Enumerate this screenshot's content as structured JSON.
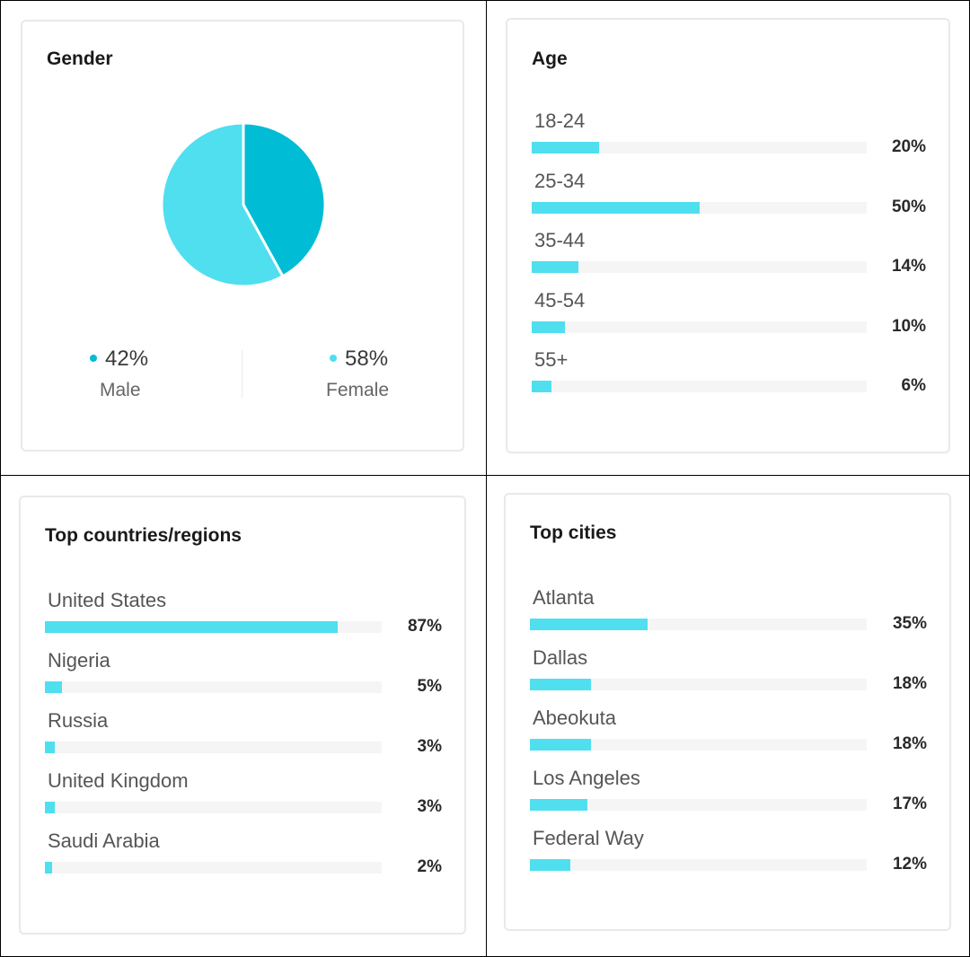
{
  "colors": {
    "male": "#00bcd4",
    "female": "#4fdfef",
    "bar": "#4fdfef",
    "track": "#f5f5f5"
  },
  "gender": {
    "title": "Gender",
    "male_pct": "42%",
    "male_label": "Male",
    "female_pct": "58%",
    "female_label": "Female"
  },
  "age": {
    "title": "Age",
    "items": [
      {
        "label": "18-24",
        "pct": "20%"
      },
      {
        "label": "25-34",
        "pct": "50%"
      },
      {
        "label": "35-44",
        "pct": "14%"
      },
      {
        "label": "45-54",
        "pct": "10%"
      },
      {
        "label": "55+",
        "pct": "6%"
      }
    ]
  },
  "countries": {
    "title": "Top countries/regions",
    "items": [
      {
        "label": "United States",
        "pct": "87%"
      },
      {
        "label": "Nigeria",
        "pct": "5%"
      },
      {
        "label": "Russia",
        "pct": "3%"
      },
      {
        "label": "United Kingdom",
        "pct": "3%"
      },
      {
        "label": "Saudi Arabia",
        "pct": "2%"
      }
    ]
  },
  "cities": {
    "title": "Top cities",
    "items": [
      {
        "label": "Atlanta",
        "pct": "35%"
      },
      {
        "label": "Dallas",
        "pct": "18%"
      },
      {
        "label": "Abeokuta",
        "pct": "18%"
      },
      {
        "label": "Los Angeles",
        "pct": "17%"
      },
      {
        "label": "Federal Way",
        "pct": "12%"
      }
    ]
  },
  "chart_data": [
    {
      "type": "pie",
      "title": "Gender",
      "categories": [
        "Male",
        "Female"
      ],
      "values": [
        42,
        58
      ],
      "colors": [
        "#00bcd4",
        "#4fdfef"
      ]
    },
    {
      "type": "bar",
      "orientation": "horizontal",
      "title": "Age",
      "categories": [
        "18-24",
        "25-34",
        "35-44",
        "45-54",
        "55+"
      ],
      "values": [
        20,
        50,
        14,
        10,
        6
      ],
      "xlim": [
        0,
        100
      ]
    },
    {
      "type": "bar",
      "orientation": "horizontal",
      "title": "Top countries/regions",
      "categories": [
        "United States",
        "Nigeria",
        "Russia",
        "United Kingdom",
        "Saudi Arabia"
      ],
      "values": [
        87,
        5,
        3,
        3,
        2
      ],
      "xlim": [
        0,
        100
      ]
    },
    {
      "type": "bar",
      "orientation": "horizontal",
      "title": "Top cities",
      "categories": [
        "Atlanta",
        "Dallas",
        "Abeokuta",
        "Los Angeles",
        "Federal Way"
      ],
      "values": [
        35,
        18,
        18,
        17,
        12
      ],
      "xlim": [
        0,
        100
      ]
    }
  ]
}
